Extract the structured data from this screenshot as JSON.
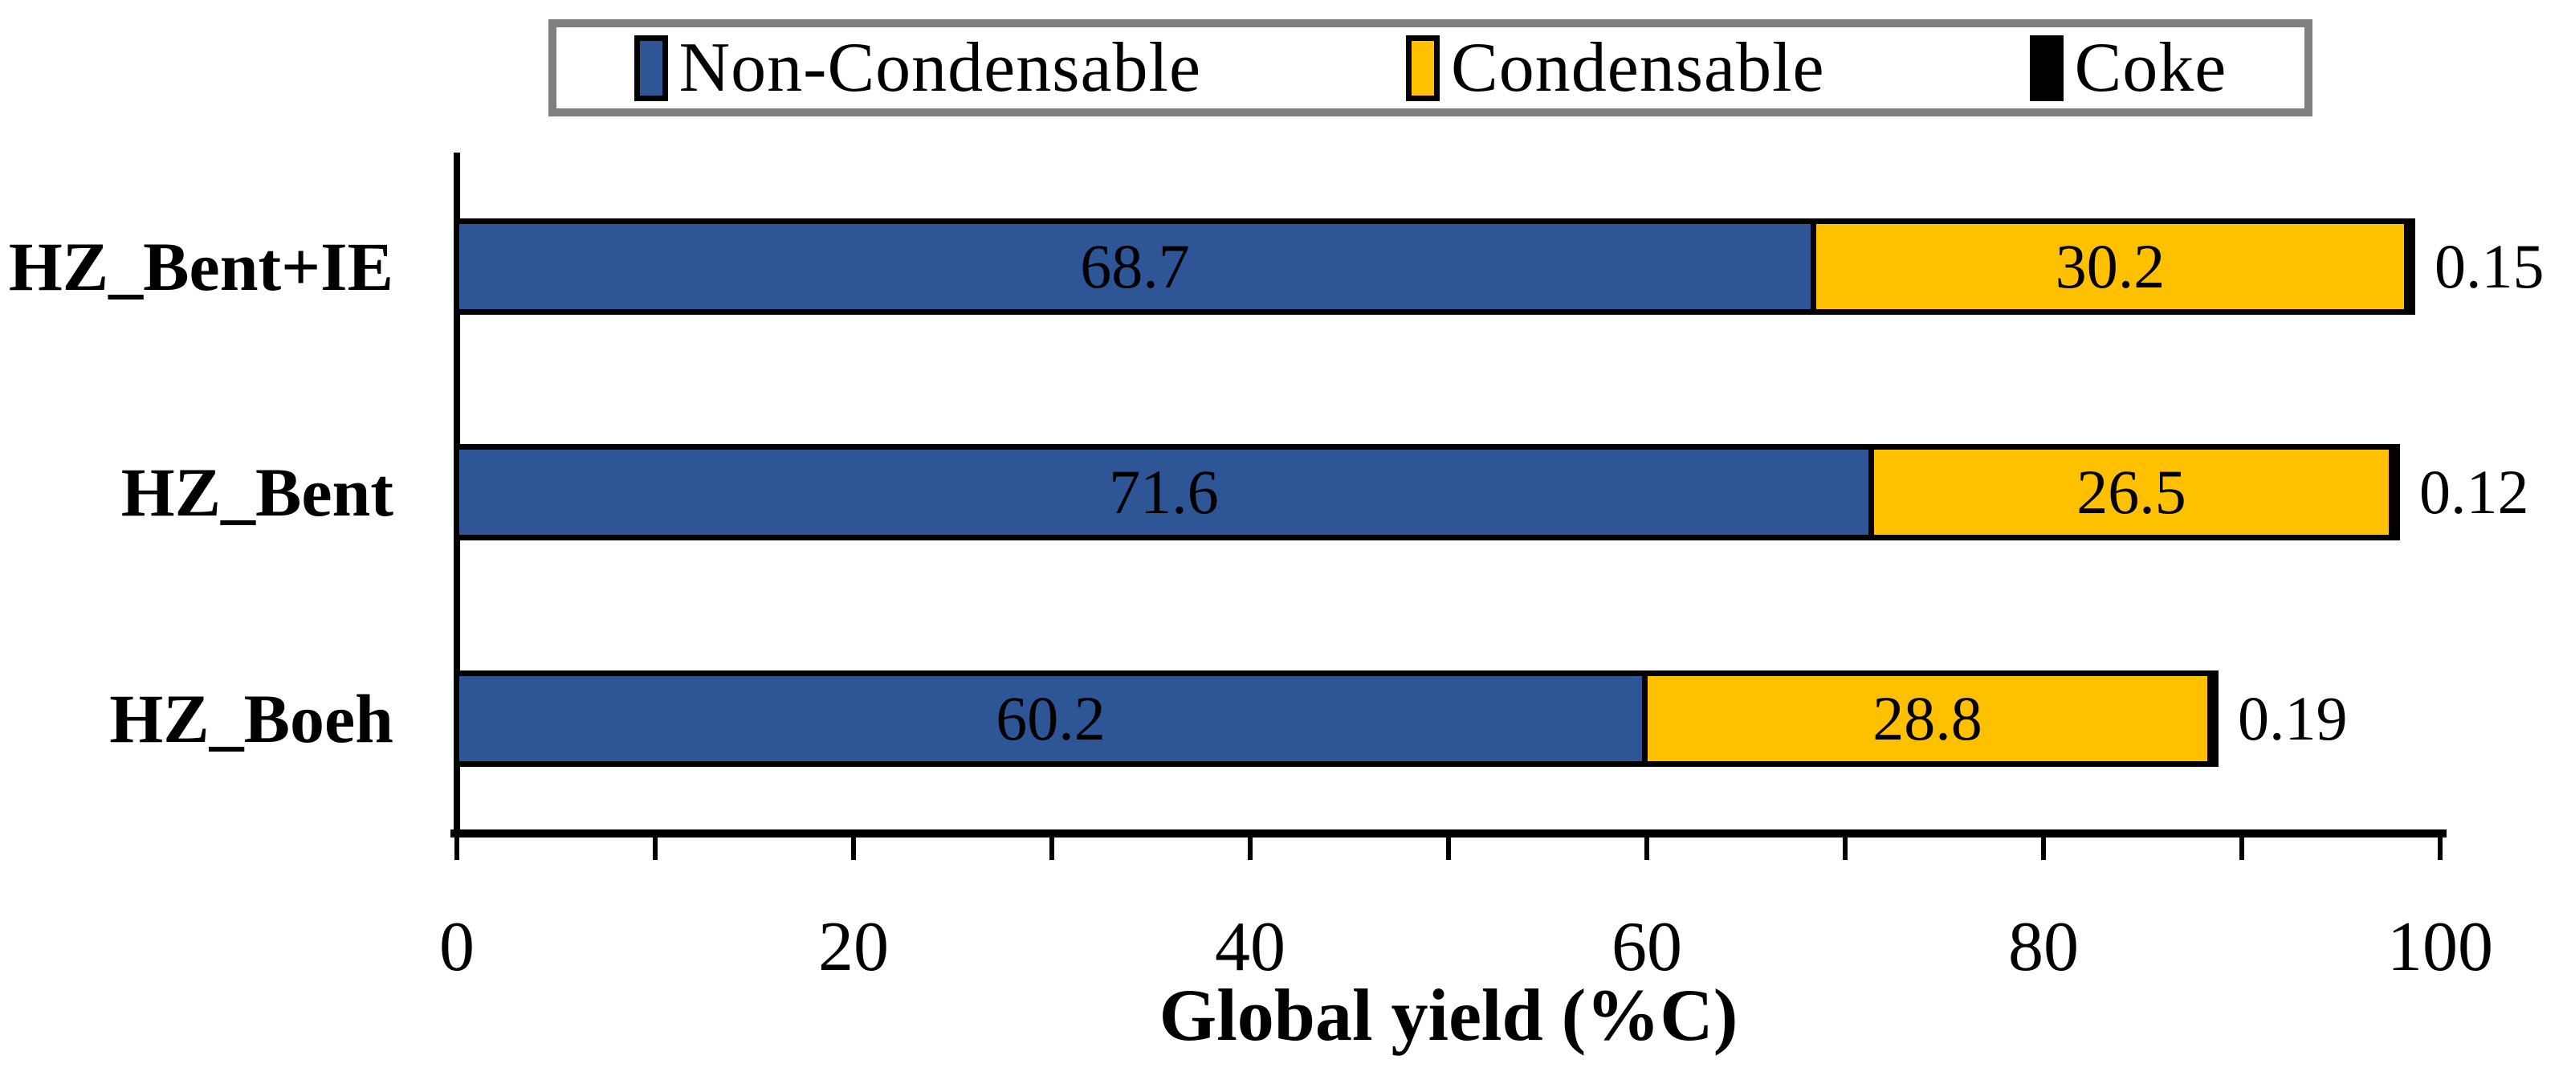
{
  "colors": {
    "non_condensable": "#2E5596",
    "condensable": "#FFC000",
    "coke": "#000000",
    "bar_border": "#000000",
    "axis": "#000000",
    "legend_border": "#7F7F7F",
    "background": "#FFFFFF"
  },
  "legend": {
    "position": "top-center",
    "items": [
      {
        "label": "Non-Condensable",
        "color": "#2E5596"
      },
      {
        "label": "Condensable",
        "color": "#FFC000"
      },
      {
        "label": "Coke",
        "color": "#000000"
      }
    ]
  },
  "chart_data": {
    "type": "bar",
    "orientation": "horizontal",
    "stacked": true,
    "title": "",
    "xlabel": "Global yield (%C)",
    "ylabel": "",
    "xlim": [
      0,
      100
    ],
    "x_major_tick_labels": [
      "0",
      "20",
      "40",
      "60",
      "80",
      "100"
    ],
    "x_major_tick_values": [
      0,
      20,
      40,
      60,
      80,
      100
    ],
    "x_minor_tick_step": 10,
    "grid": false,
    "categories": [
      "HZ_Bent+IE",
      "HZ_Bent",
      "HZ_Boeh"
    ],
    "series": [
      {
        "name": "Non-Condensable",
        "color": "#2E5596",
        "values": [
          68.7,
          71.6,
          60.2
        ],
        "labels": [
          "68.7",
          "71.6",
          "60.2"
        ],
        "label_placement": "inside"
      },
      {
        "name": "Condensable",
        "color": "#FFC000",
        "values": [
          30.2,
          26.5,
          28.8
        ],
        "labels": [
          "30.2",
          "26.5",
          "28.8"
        ],
        "label_placement": "inside"
      },
      {
        "name": "Coke",
        "color": "#000000",
        "values": [
          0.15,
          0.12,
          0.19
        ],
        "labels": [
          "0.15",
          "0.12",
          "0.19"
        ],
        "label_placement": "outside-end"
      }
    ]
  }
}
